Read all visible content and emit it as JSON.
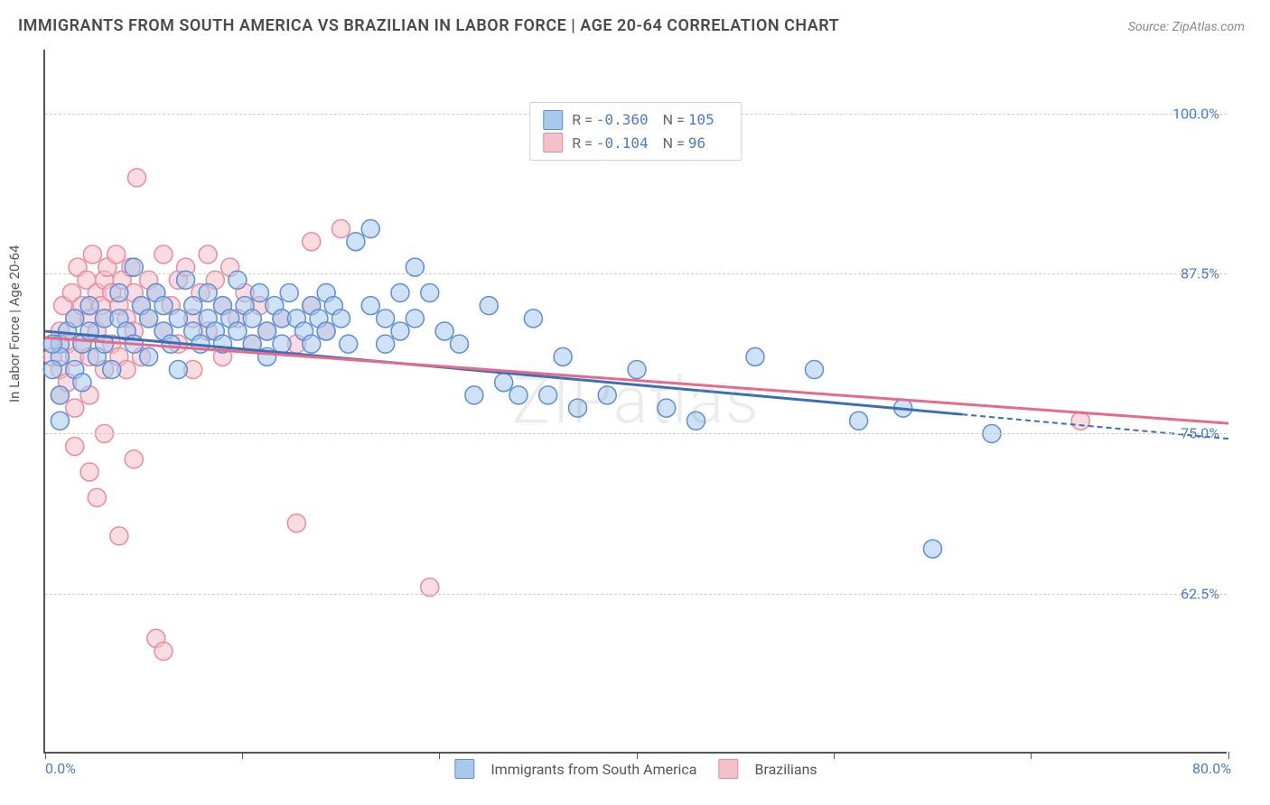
{
  "title": "IMMIGRANTS FROM SOUTH AMERICA VS BRAZILIAN IN LABOR FORCE | AGE 20-64 CORRELATION CHART",
  "source": "Source: ZipAtlas.com",
  "ylabel": "In Labor Force | Age 20-64",
  "watermark": "ZIPatlas",
  "chart": {
    "type": "scatter",
    "background_color": "#ffffff",
    "grid_color": "#cccccc",
    "axis_color": "#555555",
    "xlim": [
      0,
      80
    ],
    "ylim": [
      50,
      105
    ],
    "yticks": [
      62.5,
      75.0,
      87.5,
      100.0
    ],
    "ytick_labels": [
      "62.5%",
      "75.0%",
      "87.5%",
      "100.0%"
    ],
    "xtick_positions": [
      0,
      13.3,
      26.6,
      40,
      53.3,
      66.6,
      80
    ],
    "xtick_labels": {
      "0": "0.0%",
      "80": "80.0%"
    },
    "series": [
      {
        "name": "Immigrants from South America",
        "fill_color": "#a8c8ec",
        "stroke_color": "#5b8fd4",
        "fill_opacity": 0.55,
        "marker_radius": 10,
        "R": "-0.360",
        "N": "105",
        "trend": {
          "x1": 0,
          "y1": 83.0,
          "x2": 62,
          "y2": 76.5,
          "extend_x2": 80,
          "extend_y2": 74.6,
          "stroke": "#3a6fb8",
          "width": 3
        },
        "points": [
          [
            1,
            82
          ],
          [
            1,
            81
          ],
          [
            1.5,
            83
          ],
          [
            2,
            84
          ],
          [
            2,
            80
          ],
          [
            2.5,
            82
          ],
          [
            2.5,
            79
          ],
          [
            1,
            78
          ],
          [
            1,
            76
          ],
          [
            0.5,
            82
          ],
          [
            0.5,
            80
          ],
          [
            3,
            85
          ],
          [
            3,
            83
          ],
          [
            3.5,
            81
          ],
          [
            4,
            84
          ],
          [
            4,
            82
          ],
          [
            4.5,
            80
          ],
          [
            5,
            86
          ],
          [
            5,
            84
          ],
          [
            5.5,
            83
          ],
          [
            6,
            88
          ],
          [
            6,
            82
          ],
          [
            6.5,
            85
          ],
          [
            7,
            84
          ],
          [
            7,
            81
          ],
          [
            7.5,
            86
          ],
          [
            8,
            85
          ],
          [
            8,
            83
          ],
          [
            8.5,
            82
          ],
          [
            9,
            84
          ],
          [
            9,
            80
          ],
          [
            9.5,
            87
          ],
          [
            10,
            85
          ],
          [
            10,
            83
          ],
          [
            10.5,
            82
          ],
          [
            11,
            86
          ],
          [
            11,
            84
          ],
          [
            11.5,
            83
          ],
          [
            12,
            85
          ],
          [
            12,
            82
          ],
          [
            12.5,
            84
          ],
          [
            13,
            87
          ],
          [
            13,
            83
          ],
          [
            13.5,
            85
          ],
          [
            14,
            84
          ],
          [
            14,
            82
          ],
          [
            14.5,
            86
          ],
          [
            15,
            83
          ],
          [
            15,
            81
          ],
          [
            15.5,
            85
          ],
          [
            16,
            84
          ],
          [
            16,
            82
          ],
          [
            16.5,
            86
          ],
          [
            17,
            84
          ],
          [
            17.5,
            83
          ],
          [
            18,
            85
          ],
          [
            18,
            82
          ],
          [
            18.5,
            84
          ],
          [
            19,
            86
          ],
          [
            19,
            83
          ],
          [
            19.5,
            85
          ],
          [
            20,
            84
          ],
          [
            20.5,
            82
          ],
          [
            21,
            90
          ],
          [
            22,
            91
          ],
          [
            22,
            85
          ],
          [
            23,
            84
          ],
          [
            23,
            82
          ],
          [
            24,
            86
          ],
          [
            24,
            83
          ],
          [
            25,
            88
          ],
          [
            25,
            84
          ],
          [
            26,
            86
          ],
          [
            27,
            83
          ],
          [
            28,
            82
          ],
          [
            29,
            78
          ],
          [
            30,
            85
          ],
          [
            31,
            79
          ],
          [
            32,
            78
          ],
          [
            33,
            84
          ],
          [
            34,
            78
          ],
          [
            35,
            81
          ],
          [
            36,
            77
          ],
          [
            38,
            78
          ],
          [
            40,
            80
          ],
          [
            42,
            77
          ],
          [
            44,
            76
          ],
          [
            48,
            81
          ],
          [
            52,
            80
          ],
          [
            55,
            76
          ],
          [
            58,
            77
          ],
          [
            60,
            66
          ],
          [
            64,
            75
          ]
        ]
      },
      {
        "name": "Brazilians",
        "fill_color": "#f4c0cb",
        "stroke_color": "#e88ba0",
        "fill_opacity": 0.55,
        "marker_radius": 10,
        "R": "-0.104",
        "N": "96",
        "trend": {
          "x1": 0,
          "y1": 82.5,
          "x2": 80,
          "y2": 75.8,
          "stroke": "#e66b8a",
          "width": 3
        },
        "points": [
          [
            0.5,
            82
          ],
          [
            0.5,
            81
          ],
          [
            1,
            83
          ],
          [
            1,
            80
          ],
          [
            1,
            78
          ],
          [
            1.2,
            85
          ],
          [
            1.5,
            82
          ],
          [
            1.5,
            79
          ],
          [
            1.8,
            86
          ],
          [
            2,
            84
          ],
          [
            2,
            81
          ],
          [
            2,
            77
          ],
          [
            2.2,
            88
          ],
          [
            2.5,
            85
          ],
          [
            2.5,
            82
          ],
          [
            2.8,
            87
          ],
          [
            3,
            84
          ],
          [
            3,
            81
          ],
          [
            3,
            78
          ],
          [
            3.2,
            89
          ],
          [
            3.5,
            86
          ],
          [
            3.5,
            83
          ],
          [
            3.8,
            85
          ],
          [
            4,
            87
          ],
          [
            4,
            84
          ],
          [
            4,
            80
          ],
          [
            4.2,
            88
          ],
          [
            4.5,
            86
          ],
          [
            4.5,
            82
          ],
          [
            4.8,
            89
          ],
          [
            5,
            85
          ],
          [
            5,
            81
          ],
          [
            5.2,
            87
          ],
          [
            5.5,
            84
          ],
          [
            5.5,
            80
          ],
          [
            5.8,
            88
          ],
          [
            6,
            86
          ],
          [
            6,
            83
          ],
          [
            6.2,
            95
          ],
          [
            6.5,
            85
          ],
          [
            6.5,
            81
          ],
          [
            7,
            87
          ],
          [
            7,
            84
          ],
          [
            7.5,
            86
          ],
          [
            8,
            89
          ],
          [
            8,
            83
          ],
          [
            8.5,
            85
          ],
          [
            9,
            87
          ],
          [
            9,
            82
          ],
          [
            9.5,
            88
          ],
          [
            10,
            84
          ],
          [
            10,
            80
          ],
          [
            10.5,
            86
          ],
          [
            11,
            89
          ],
          [
            11,
            83
          ],
          [
            11.5,
            87
          ],
          [
            12,
            85
          ],
          [
            12,
            81
          ],
          [
            12.5,
            88
          ],
          [
            13,
            84
          ],
          [
            13.5,
            86
          ],
          [
            14,
            82
          ],
          [
            14.5,
            85
          ],
          [
            15,
            83
          ],
          [
            16,
            84
          ],
          [
            17,
            82
          ],
          [
            18,
            90
          ],
          [
            18,
            85
          ],
          [
            19,
            83
          ],
          [
            20,
            91
          ],
          [
            2,
            74
          ],
          [
            3,
            72
          ],
          [
            3.5,
            70
          ],
          [
            4,
            75
          ],
          [
            5,
            67
          ],
          [
            6,
            73
          ],
          [
            7.5,
            59
          ],
          [
            8,
            58
          ],
          [
            17,
            68
          ],
          [
            26,
            63
          ],
          [
            70,
            76
          ]
        ]
      }
    ]
  },
  "legend_bottom": {
    "items": [
      {
        "label": "Immigrants from South America",
        "fill": "#a8c8ec",
        "stroke": "#5b8fd4"
      },
      {
        "label": "Brazilians",
        "fill": "#f4c0cb",
        "stroke": "#e88ba0"
      }
    ]
  }
}
